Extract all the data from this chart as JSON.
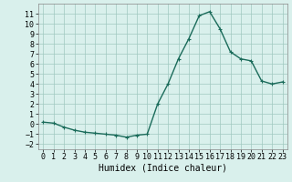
{
  "x": [
    0,
    1,
    2,
    3,
    4,
    5,
    6,
    7,
    8,
    9,
    10,
    11,
    12,
    13,
    14,
    15,
    16,
    17,
    18,
    19,
    20,
    21,
    22,
    23
  ],
  "y": [
    0.2,
    0.1,
    -0.3,
    -0.6,
    -0.8,
    -0.9,
    -1.0,
    -1.1,
    -1.3,
    -1.1,
    -1.0,
    2.0,
    4.0,
    6.5,
    8.5,
    10.8,
    11.2,
    9.5,
    7.2,
    6.5,
    6.3,
    4.3,
    4.0,
    4.2
  ],
  "line_color": "#1a6b5a",
  "marker": "+",
  "markersize": 3,
  "linewidth": 1.0,
  "bg_color": "#d9f0ec",
  "grid_color": "#a0c8c0",
  "xlabel": "Humidex (Indice chaleur)",
  "xlabel_fontsize": 7,
  "tick_fontsize": 6,
  "ylim": [
    -2.5,
    12.0
  ],
  "xlim": [
    -0.5,
    23.5
  ],
  "yticks": [
    -2,
    -1,
    0,
    1,
    2,
    3,
    4,
    5,
    6,
    7,
    8,
    9,
    10,
    11
  ],
  "xticks": [
    0,
    1,
    2,
    3,
    4,
    5,
    6,
    7,
    8,
    9,
    10,
    11,
    12,
    13,
    14,
    15,
    16,
    17,
    18,
    19,
    20,
    21,
    22,
    23
  ]
}
